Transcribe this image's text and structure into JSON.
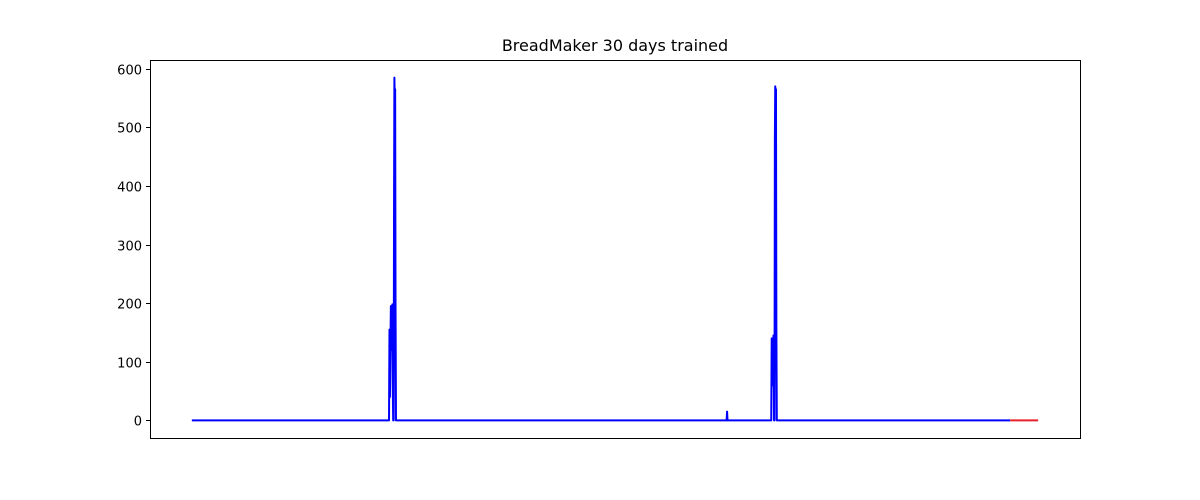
{
  "chart_data": {
    "type": "line",
    "title": "BreadMaker 30 days trained",
    "xlabel": "",
    "ylabel": "",
    "xlim": [
      0,
      1000
    ],
    "ylim": [
      -30,
      615
    ],
    "x_ticks_visible": false,
    "y_ticks": [
      0,
      100,
      200,
      300,
      400,
      500,
      600
    ],
    "grid": false,
    "legend": "none",
    "colors": {
      "primary": "#0000ff",
      "secondary": "#e8202a"
    },
    "series": [
      {
        "color": "#0000ff",
        "points": [
          [
            45,
            0
          ],
          [
            257,
            0
          ],
          [
            257.5,
            155
          ],
          [
            258,
            40
          ],
          [
            259,
            195
          ],
          [
            260,
            120
          ],
          [
            260.6,
            198
          ],
          [
            261,
            60
          ],
          [
            261.5,
            0
          ],
          [
            262,
            0
          ],
          [
            262.4,
            350
          ],
          [
            262.8,
            585
          ],
          [
            263.2,
            540
          ],
          [
            263.6,
            565
          ],
          [
            264,
            200
          ],
          [
            264.5,
            0
          ],
          [
            620,
            0
          ],
          [
            620.5,
            15
          ],
          [
            621,
            0
          ],
          [
            668,
            0
          ],
          [
            668.5,
            140
          ],
          [
            669,
            60
          ],
          [
            669.5,
            140
          ],
          [
            670,
            90
          ],
          [
            670.4,
            145
          ],
          [
            671,
            0
          ],
          [
            671.5,
            0
          ],
          [
            671.9,
            480
          ],
          [
            672.3,
            570
          ],
          [
            672.7,
            560
          ],
          [
            673.1,
            565
          ],
          [
            673.5,
            160
          ],
          [
            674,
            0
          ],
          [
            925,
            0
          ]
        ]
      },
      {
        "color": "#e8202a",
        "points": [
          [
            925,
            0
          ],
          [
            955,
            0
          ]
        ]
      }
    ]
  }
}
